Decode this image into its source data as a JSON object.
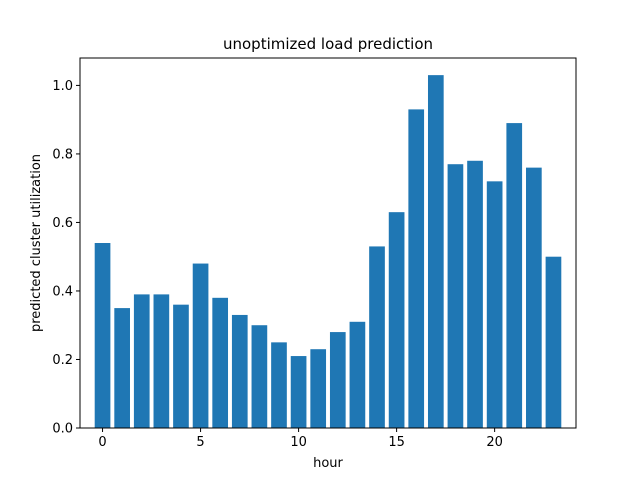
{
  "chart_data": {
    "type": "bar",
    "title": "unoptimized load prediction",
    "xlabel": "hour",
    "ylabel": "predicted cluster utilization",
    "x": [
      0,
      1,
      2,
      3,
      4,
      5,
      6,
      7,
      8,
      9,
      10,
      11,
      12,
      13,
      14,
      15,
      16,
      17,
      18,
      19,
      20,
      21,
      22,
      23
    ],
    "values": [
      0.54,
      0.35,
      0.39,
      0.39,
      0.36,
      0.48,
      0.38,
      0.33,
      0.3,
      0.25,
      0.21,
      0.23,
      0.28,
      0.31,
      0.53,
      0.63,
      0.93,
      1.03,
      0.77,
      0.78,
      0.72,
      0.89,
      0.76,
      0.5
    ],
    "xlim": [
      -1.15,
      24.15
    ],
    "ylim": [
      0,
      1.08
    ],
    "xticks": [
      0,
      5,
      10,
      15,
      20
    ],
    "yticks": [
      0.0,
      0.2,
      0.4,
      0.6,
      0.8,
      1.0
    ],
    "bar_color": "#1f77b4",
    "grid": false
  }
}
